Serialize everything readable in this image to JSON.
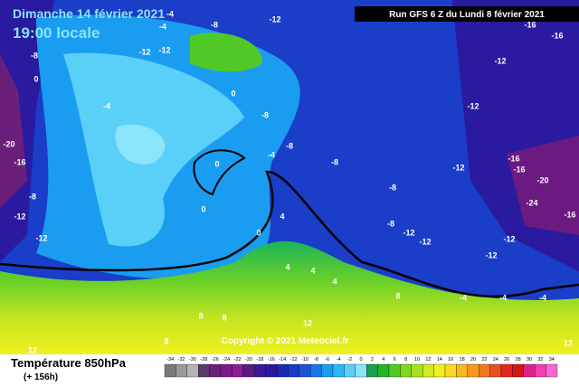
{
  "header": {
    "date": "Dimanche 14 février 2021",
    "time": "19:00 locale",
    "run": "Run GFS 6 Z du Lundi 8 février 2021"
  },
  "copyright": "Copyright © 2021 Meteociel.fr",
  "footer": {
    "variable": "Température 850hPa",
    "lead": "(+ 156h)"
  },
  "scale": {
    "values": [
      -34,
      -32,
      -30,
      -28,
      -26,
      -24,
      -22,
      -20,
      -18,
      -16,
      -14,
      -12,
      -10,
      -8,
      -6,
      -4,
      -2,
      0,
      2,
      4,
      6,
      8,
      10,
      12,
      14,
      16,
      18,
      20,
      22,
      24,
      26,
      28,
      30,
      32,
      34
    ],
    "colors": [
      "#7a7a7a",
      "#9a9a9a",
      "#b4b4b4",
      "#5a3a6a",
      "#6a1f7a",
      "#7d1a8a",
      "#8e1a9a",
      "#5a1a80",
      "#3a1a8e",
      "#2a1aa0",
      "#1a28b4",
      "#1a3ac8",
      "#1a55d6",
      "#1a78e6",
      "#1a9cf0",
      "#2ab8f4",
      "#5ad0f8",
      "#8ae4fa",
      "#1aa050",
      "#28b428",
      "#50c828",
      "#80d820",
      "#a8e020",
      "#d0ea20",
      "#f0f020",
      "#f8d820",
      "#f8b820",
      "#f89820",
      "#f07820",
      "#e85020",
      "#e02820",
      "#d01818",
      "#e0208a",
      "#f040b0",
      "#f868d0"
    ]
  },
  "map_labels": [
    -8,
    -12,
    -12,
    -4,
    -4,
    -8,
    -12,
    -16,
    -16,
    -12,
    -12,
    -16,
    -16,
    -12,
    -20,
    -24,
    -16,
    -12,
    -12,
    -8,
    -8,
    -8,
    -8,
    -8,
    -12,
    -12,
    -16,
    -20,
    -12,
    -12,
    -8,
    -4,
    -4,
    0,
    0,
    0,
    4,
    4,
    4,
    4,
    8,
    8,
    8,
    8,
    12,
    12,
    12,
    -4,
    -4,
    -4,
    0,
    0
  ]
}
